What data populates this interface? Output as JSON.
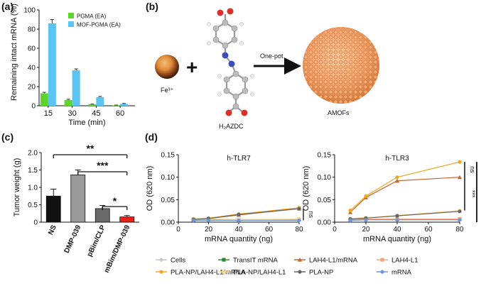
{
  "panels": {
    "a": {
      "letter": "(a)"
    },
    "b": {
      "letter": "(b)"
    },
    "c": {
      "letter": "(c)"
    },
    "d": {
      "letter": "(d)"
    }
  },
  "scheme": {
    "fe_label": "Fe³⁺",
    "plus": "+",
    "ligand_label": "H₂AZDC",
    "arrow_label": "One-pot",
    "product_label": "AMOFs"
  },
  "colors": {
    "pgma": "#5dd62c",
    "mof_pgma": "#5bc4f0",
    "ns": "#111111",
    "dmp039": "#9a9a9a",
    "pbim": "#6a6a6a",
    "mbim": "#e8221b",
    "orange_sphere": "#e9955a"
  },
  "chart_data": [
    {
      "id": "a",
      "type": "bar",
      "ylabel": "Remaining intact mRNA (%)",
      "xlabel": "Time (min)",
      "categories": [
        "15",
        "30",
        "45",
        "60"
      ],
      "ylim": [
        0,
        100
      ],
      "yticks": [
        0,
        20,
        40,
        60,
        80,
        100
      ],
      "legend_position": "top-right",
      "series": [
        {
          "name": "PGMA (EA)",
          "values": [
            13,
            6,
            1.5,
            0.5
          ],
          "errors": [
            1,
            0.8,
            0.3,
            0.2
          ]
        },
        {
          "name": "MOF-PGMA (EA)",
          "values": [
            86,
            37,
            9,
            2
          ],
          "errors": [
            4,
            1.5,
            0.7,
            0.4
          ]
        }
      ]
    },
    {
      "id": "c",
      "type": "bar",
      "ylabel": "Tumor weight (g)",
      "categories": [
        "NS",
        "DMP-039",
        "pBim/CLP",
        "mBim/DMP-039"
      ],
      "values": [
        0.75,
        1.36,
        0.39,
        0.15
      ],
      "errors": [
        0.2,
        0.14,
        0.09,
        0.04
      ],
      "ylim": [
        0,
        2.0
      ],
      "yticks": [
        0,
        0.5,
        1.0,
        1.5,
        2.0
      ],
      "ytick_labels": [
        "0",
        "0.5",
        "1.0",
        "1.5",
        "2.0"
      ],
      "significance": [
        {
          "label": "**",
          "from": 0,
          "to": 3
        },
        {
          "label": "***",
          "from": 1,
          "to": 3
        },
        {
          "label": "*",
          "from": 2,
          "to": 3
        }
      ]
    },
    {
      "id": "d-left",
      "type": "line",
      "title": "h-TLR7",
      "ylabel": "OD (620 nm)",
      "xlabel": "mRNA quantity (ng)",
      "x": [
        10,
        20,
        40,
        80
      ],
      "xlim": [
        0,
        80
      ],
      "xticks": [
        0,
        20,
        40,
        60,
        80
      ],
      "ylim": [
        0,
        0.15
      ],
      "yticks": [
        0,
        0.05,
        0.1,
        0.15
      ],
      "ytick_labels": [
        "0.00",
        "0.05",
        "0.10",
        "0.15"
      ],
      "significance": [
        {
          "label": "ns"
        }
      ],
      "series": [
        {
          "name": "Cells",
          "values": [
            0.005,
            0.005,
            0.004,
            0.004
          ]
        },
        {
          "name": "TransIT mRNA",
          "values": [
            0.006,
            0.007,
            0.005,
            0.006
          ]
        },
        {
          "name": "LAH4-L1/mRNA",
          "values": [
            0.006,
            0.008,
            0.016,
            0.03
          ]
        },
        {
          "name": "LAH4-L1",
          "values": [
            0.005,
            0.006,
            0.005,
            0.006
          ]
        },
        {
          "name": "PLA-NP/LAH4-L1/mRNA",
          "values": [
            0.007,
            0.009,
            0.018,
            0.032
          ]
        },
        {
          "name": "PLA-NP/LAH4-L1",
          "values": [
            0.006,
            0.007,
            0.006,
            0.007
          ]
        },
        {
          "name": "PLA-NP",
          "values": [
            0.006,
            0.008,
            0.017,
            0.03
          ]
        },
        {
          "name": "mRNA",
          "values": [
            0.004,
            0.004,
            0.004,
            0.004
          ]
        }
      ]
    },
    {
      "id": "d-right",
      "type": "line",
      "title": "h-TLR3",
      "ylabel": "OD (620 nm)",
      "xlabel": "mRNA quantity (ng)",
      "x": [
        10,
        20,
        40,
        80
      ],
      "xlim": [
        0,
        80
      ],
      "xticks": [
        0,
        20,
        40,
        60,
        80
      ],
      "ylim": [
        0,
        0.15
      ],
      "yticks": [
        0,
        0.05,
        0.1,
        0.15
      ],
      "ytick_labels": [
        "0.00",
        "0.05",
        "0.10",
        "0.15"
      ],
      "significance": [
        {
          "label": "ns"
        },
        {
          "label": "***"
        },
        {
          "label": "****"
        }
      ],
      "series": [
        {
          "name": "Cells",
          "values": [
            0.005,
            0.006,
            0.006,
            0.006
          ]
        },
        {
          "name": "TransIT mRNA",
          "values": [
            0.006,
            0.007,
            0.007,
            0.007
          ]
        },
        {
          "name": "LAH4-L1/mRNA",
          "values": [
            0.022,
            0.055,
            0.092,
            0.1
          ]
        },
        {
          "name": "LAH4-L1",
          "values": [
            0.006,
            0.007,
            0.007,
            0.007
          ]
        },
        {
          "name": "PLA-NP/LAH4-L1/mRNA",
          "values": [
            0.026,
            0.058,
            0.1,
            0.134
          ]
        },
        {
          "name": "PLA-NP/LAH4-L1",
          "values": [
            0.008,
            0.01,
            0.015,
            0.026
          ]
        },
        {
          "name": "PLA-NP",
          "values": [
            0.007,
            0.009,
            0.014,
            0.024
          ]
        },
        {
          "name": "mRNA",
          "values": [
            0.004,
            0.005,
            0.005,
            0.005
          ]
        }
      ]
    }
  ],
  "legend_d": [
    {
      "name": "Cells",
      "color": "#c7c7c7",
      "marker": "diamond"
    },
    {
      "name": "TransIT mRNA",
      "color": "#2f8a2f",
      "marker": "square"
    },
    {
      "name": "LAH4-L1/mRNA",
      "color": "#c8652d",
      "marker": "triangle"
    },
    {
      "name": "LAH4-L1",
      "color": "#f0a582",
      "marker": "square"
    },
    {
      "name": "PLA-NP/LAH4-L1/mRNA",
      "color": "#f2a81d",
      "marker": "circle"
    },
    {
      "name": "PLA-NP/LAH4-L1",
      "color": "#ffd98a",
      "marker": "circle"
    },
    {
      "name": "PLA-NP",
      "color": "#666666",
      "marker": "circle"
    },
    {
      "name": "mRNA",
      "color": "#6f96d8",
      "marker": "circle"
    }
  ]
}
